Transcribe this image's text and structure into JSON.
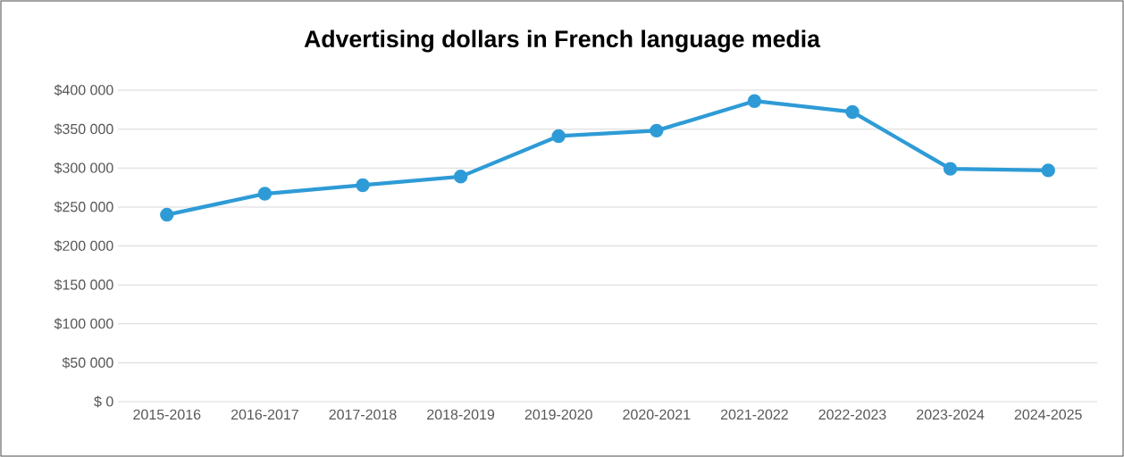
{
  "chart_data": {
    "type": "line",
    "title": "Advertising dollars in French language media",
    "categories": [
      "2015-2016",
      "2016-2017",
      "2017-2018",
      "2018-2019",
      "2019-2020",
      "2020-2021",
      "2021-2022",
      "2022-2023",
      "2023-2024",
      "2024-2025"
    ],
    "series": [
      {
        "color": "#2e9bd6",
        "values": [
          240000,
          267000,
          278000,
          289000,
          341000,
          348000,
          386000,
          372000,
          299000,
          297000
        ]
      }
    ],
    "ylim": [
      0,
      400000
    ],
    "yticks": [
      {
        "value": 0,
        "label": "$ 0"
      },
      {
        "value": 50000,
        "label": "$50 000"
      },
      {
        "value": 100000,
        "label": "$100 000"
      },
      {
        "value": 150000,
        "label": "$150 000"
      },
      {
        "value": 200000,
        "label": "$200 000"
      },
      {
        "value": 250000,
        "label": "$250 000"
      },
      {
        "value": 300000,
        "label": "$300 000"
      },
      {
        "value": 350000,
        "label": "$350 000"
      },
      {
        "value": 400000,
        "label": "$400 000"
      }
    ],
    "grid": "y",
    "marker": "circle",
    "line_style": "solid"
  }
}
